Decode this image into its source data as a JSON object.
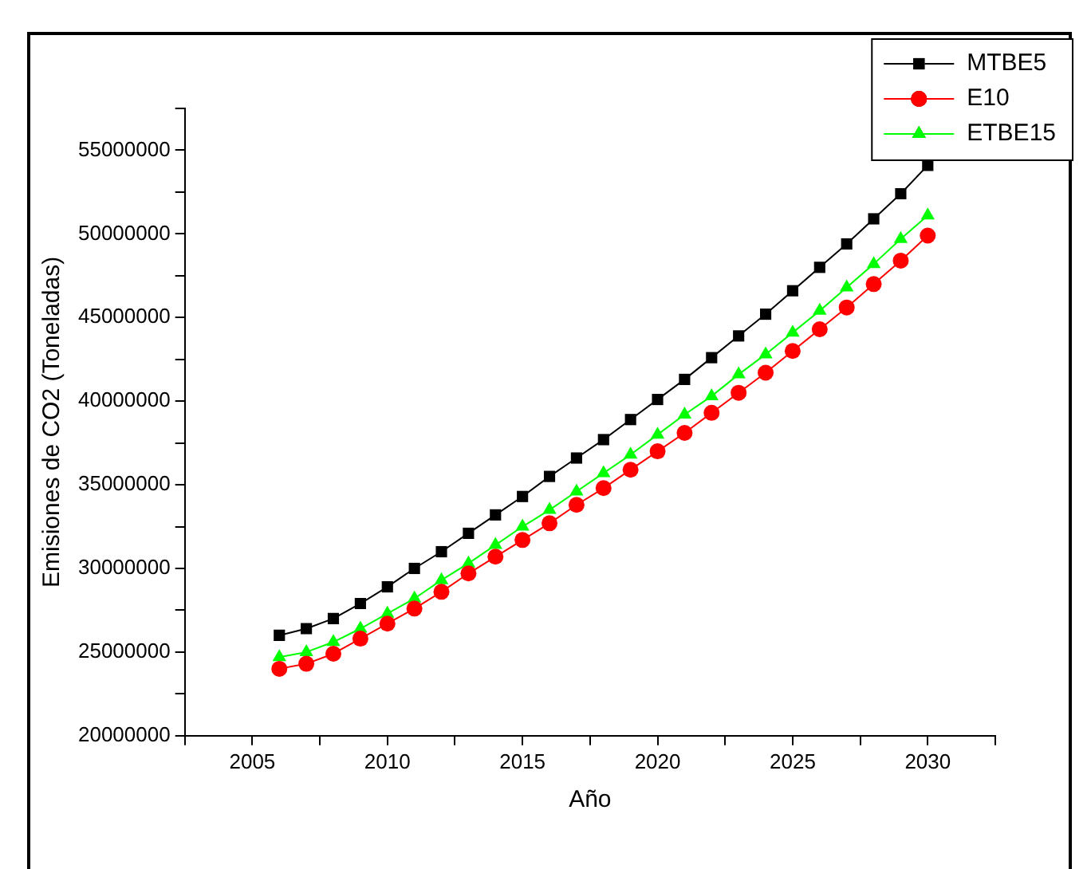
{
  "chart_data": {
    "type": "line",
    "xlabel": "Año",
    "ylabel": "Emisiones de CO2 (Toneladas)",
    "x": [
      2006,
      2007,
      2008,
      2009,
      2010,
      2011,
      2012,
      2013,
      2014,
      2015,
      2016,
      2017,
      2018,
      2019,
      2020,
      2021,
      2022,
      2023,
      2024,
      2025,
      2026,
      2027,
      2028,
      2029,
      2030
    ],
    "series": [
      {
        "name": "MTBE5",
        "color": "#000000",
        "marker": "square",
        "values": [
          26000000,
          26400000,
          27000000,
          27900000,
          28900000,
          30000000,
          31000000,
          32100000,
          33200000,
          34300000,
          35500000,
          36600000,
          37700000,
          38900000,
          40100000,
          41300000,
          42600000,
          43900000,
          45200000,
          46600000,
          48000000,
          49400000,
          50900000,
          52400000,
          54100000
        ]
      },
      {
        "name": "E10",
        "color": "#ff0000",
        "marker": "circle",
        "values": [
          24000000,
          24300000,
          24900000,
          25800000,
          26700000,
          27600000,
          28600000,
          29700000,
          30700000,
          31700000,
          32700000,
          33800000,
          34800000,
          35900000,
          37000000,
          38100000,
          39300000,
          40500000,
          41700000,
          43000000,
          44300000,
          45600000,
          47000000,
          48400000,
          49900000
        ]
      },
      {
        "name": "ETBE15",
        "color": "#00ff00",
        "marker": "triangle",
        "values": [
          24700000,
          25000000,
          25600000,
          26400000,
          27300000,
          28200000,
          29300000,
          30300000,
          31400000,
          32500000,
          33500000,
          34600000,
          35700000,
          36800000,
          38000000,
          39200000,
          40300000,
          41600000,
          42800000,
          44100000,
          45400000,
          46800000,
          48200000,
          49700000,
          51100000
        ]
      }
    ],
    "xlim": [
      2002.5,
      2032.5
    ],
    "xticks": [
      {
        "value": 2002.5,
        "label": null
      },
      2005,
      {
        "value": 2007.5,
        "label": null
      },
      2010,
      {
        "value": 2012.5,
        "label": null
      },
      2015,
      {
        "value": 2017.5,
        "label": null
      },
      2020,
      {
        "value": 2022.5,
        "label": null
      },
      2025,
      {
        "value": 2027.5,
        "label": null
      },
      2030,
      {
        "value": 2032.5,
        "label": null
      }
    ],
    "ylim": [
      20000000,
      57500000
    ],
    "yticks": [
      20000000,
      {
        "value": 22500000,
        "label": null
      },
      25000000,
      {
        "value": 27500000,
        "label": null
      },
      30000000,
      {
        "value": 32500000,
        "label": null
      },
      35000000,
      {
        "value": 37500000,
        "label": null
      },
      40000000,
      {
        "value": 42500000,
        "label": null
      },
      45000000,
      {
        "value": 47500000,
        "label": null
      },
      50000000,
      {
        "value": 52500000,
        "label": null
      },
      55000000,
      {
        "value": 57500000,
        "label": null
      }
    ],
    "grid": false,
    "legend": "top right",
    "line_style": "solid"
  }
}
